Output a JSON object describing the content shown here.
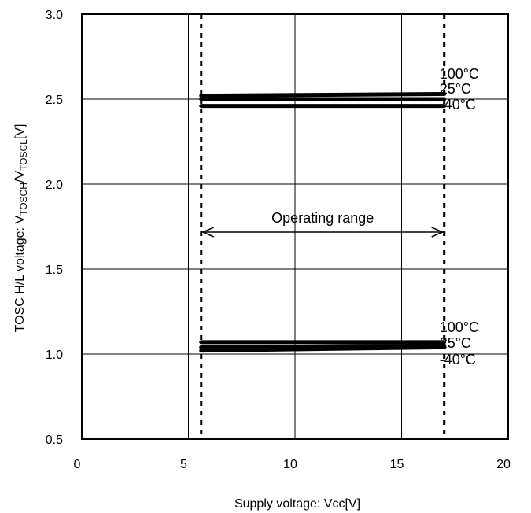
{
  "chart_data": {
    "type": "line",
    "title": "",
    "xlabel": "Supply voltage: Vcc[V]",
    "ylabel": {
      "prefix": "TOSC H/L voltage: V",
      "sub1": "TOSCH",
      "mid": "/V",
      "sub2": "TOSCL",
      "suffix": "[V]"
    },
    "xlim": [
      0,
      20
    ],
    "ylim": [
      0.5,
      3.0
    ],
    "xticks": [
      0,
      5,
      10,
      15,
      20
    ],
    "xtick_labels": [
      "0",
      "5",
      "10",
      "15",
      "20"
    ],
    "yticks": [
      0.5,
      1.0,
      1.5,
      2.0,
      2.5,
      3.0
    ],
    "ytick_labels": [
      "0.5",
      "1.0",
      "1.5",
      "2.0",
      "2.5",
      "3.0"
    ],
    "grid": true,
    "operating_range": {
      "label": "Operating range",
      "x": [
        5.6,
        17.0
      ]
    },
    "series": [
      {
        "name": "100°C",
        "group": "high",
        "x": [
          5.6,
          17.0
        ],
        "y": [
          2.52,
          2.53
        ]
      },
      {
        "name": "25°C",
        "group": "high",
        "x": [
          5.6,
          17.0
        ],
        "y": [
          2.5,
          2.5
        ]
      },
      {
        "name": "-40°C",
        "group": "high",
        "x": [
          5.6,
          17.0
        ],
        "y": [
          2.46,
          2.46
        ]
      },
      {
        "name": "100°C",
        "group": "low",
        "x": [
          5.6,
          17.0
        ],
        "y": [
          1.07,
          1.07
        ]
      },
      {
        "name": "25°C",
        "group": "low",
        "x": [
          5.6,
          17.0
        ],
        "y": [
          1.04,
          1.05
        ]
      },
      {
        "name": "-40°C",
        "group": "low",
        "x": [
          5.6,
          17.0
        ],
        "y": [
          1.02,
          1.04
        ]
      }
    ],
    "series_labels": {
      "high": [
        "100°C",
        "25°C",
        "-40°C"
      ],
      "low": [
        "100°C",
        "25°C",
        "-40°C"
      ]
    }
  }
}
